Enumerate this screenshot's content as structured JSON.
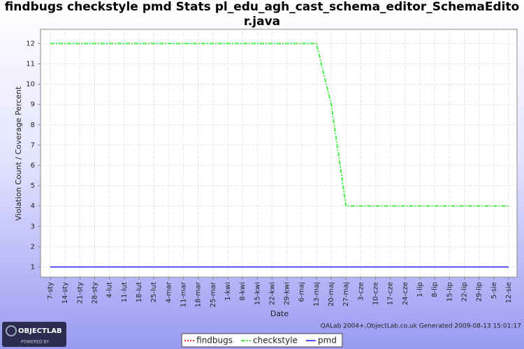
{
  "chart_data": {
    "type": "line",
    "title": "findbugs checkstyle pmd  Stats pl_edu_agh_cast_schema_editor_SchemaEditor.java",
    "x_label": "Date",
    "y_label": "Violation Count / Coverage Percent",
    "categories": [
      "7-sty",
      "14-sty",
      "21-sty",
      "28-sty",
      "4-lut",
      "11-lut",
      "18-lut",
      "25-lut",
      "4-mar",
      "11-mar",
      "18-mar",
      "25-mar",
      "1-kwi",
      "8-kwi",
      "15-kwi",
      "22-kwi",
      "29-kwi",
      "6-maj",
      "13-maj",
      "20-maj",
      "27-maj",
      "3-cze",
      "10-cze",
      "17-cze",
      "24-cze",
      "1-lip",
      "8-lip",
      "15-lip",
      "22-lip",
      "29-lip",
      "5-sie",
      "12-sie"
    ],
    "series": [
      {
        "name": "findbugs",
        "color": "#ff2020",
        "line_style": "dotted",
        "values": [
          1,
          1,
          1,
          1,
          1,
          1,
          1,
          1,
          1,
          1,
          1,
          1,
          1,
          1,
          1,
          1,
          1,
          1,
          1,
          1,
          1,
          1,
          1,
          1,
          1,
          1,
          1,
          1,
          1,
          1,
          1,
          1
        ]
      },
      {
        "name": "checkstyle",
        "color": "#44ee44",
        "line_style": "dashdot",
        "values": [
          12,
          12,
          12,
          12,
          12,
          12,
          12,
          12,
          12,
          12,
          12,
          12,
          12,
          12,
          12,
          12,
          12,
          12,
          12,
          9,
          4,
          4,
          4,
          4,
          4,
          4,
          4,
          4,
          4,
          4,
          4,
          4
        ]
      },
      {
        "name": "pmd",
        "color": "#5050ff",
        "line_style": "solid",
        "values": [
          1,
          1,
          1,
          1,
          1,
          1,
          1,
          1,
          1,
          1,
          1,
          1,
          1,
          1,
          1,
          1,
          1,
          1,
          1,
          1,
          1,
          1,
          1,
          1,
          1,
          1,
          1,
          1,
          1,
          1,
          1,
          1
        ]
      }
    ],
    "ylim": [
      0.5,
      12.7
    ],
    "yticks": [
      1,
      2,
      3,
      4,
      5,
      6,
      7,
      8,
      9,
      10,
      11,
      12
    ],
    "grid": true,
    "legend": "bottom",
    "footer": "QALab 2004+,ObjectLab.co.uk Generated 2009-08-13 15:01:17",
    "logo": [
      "OBJECTLAB",
      "POWERED BY"
    ]
  }
}
